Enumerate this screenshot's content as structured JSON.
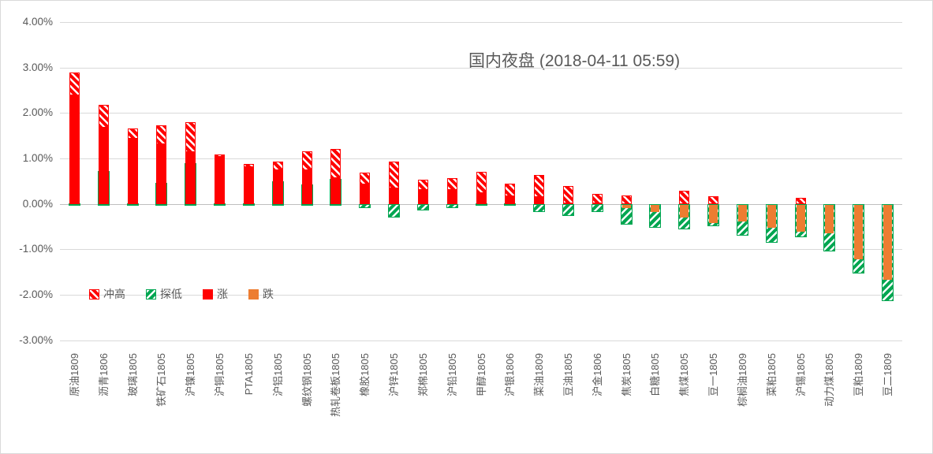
{
  "chart": {
    "title": "国内夜盘 (2018-04-11 05:59)",
    "legend": [
      {
        "label": "冲高",
        "style": "red-hatch"
      },
      {
        "label": "探低",
        "style": "green-hatch"
      },
      {
        "label": "涨",
        "style": "red-solid"
      },
      {
        "label": "跌",
        "style": "orange-solid"
      }
    ],
    "colors": {
      "rise_red": "#ff0000",
      "fall_orange": "#ed7d31",
      "low_green": "#00a651",
      "gridline": "#d9d9d9",
      "axis_text": "#595959"
    }
  },
  "chart_data": {
    "type": "bar",
    "subtype": "overlapped high-low-close change bars",
    "title": "国内夜盘 (2018-04-11 05:59)",
    "xlabel": "",
    "ylabel": "",
    "ylim": [
      -3,
      4
    ],
    "grid": true,
    "legend_position": "inside lower-left",
    "y_ticks": [
      "4.00%",
      "3.00%",
      "2.00%",
      "1.00%",
      "0.00%",
      "-1.00%",
      "-2.00%",
      "-3.00%"
    ],
    "y_tick_values": [
      4,
      3,
      2,
      1,
      0,
      -1,
      -2,
      -3
    ],
    "categories": [
      "原油1809",
      "沥青1806",
      "玻璃1805",
      "铁矿石1805",
      "沪镍1805",
      "沪铜1805",
      "PTA1805",
      "沪铝1805",
      "螺纹钢1805",
      "热轧卷板1805",
      "橡胶1805",
      "沪锌1805",
      "郑棉1805",
      "沪铅1805",
      "甲醇1805",
      "沪银1806",
      "菜油1809",
      "豆油1805",
      "沪金1806",
      "焦炭1805",
      "白糖1805",
      "焦煤1805",
      "豆一1805",
      "棕榈油1809",
      "菜粕1805",
      "沪锡1805",
      "动力煤1805",
      "豆粕1809",
      "豆二1809"
    ],
    "series": [
      {
        "name": "冲高",
        "role": "session high %",
        "values": [
          2.89,
          2.17,
          1.65,
          1.72,
          1.8,
          1.08,
          0.87,
          0.93,
          1.16,
          1.2,
          0.68,
          0.93,
          0.53,
          0.57,
          0.7,
          0.44,
          0.64,
          0.4,
          0.22,
          0.18,
          0.0,
          0.28,
          0.16,
          0.0,
          0.0,
          0.14,
          0.0,
          0.0,
          0.0
        ]
      },
      {
        "name": "探低",
        "role": "session low %",
        "values": [
          -0.03,
          0.72,
          -0.04,
          0.46,
          0.9,
          -0.02,
          -0.02,
          0.5,
          0.43,
          0.55,
          -0.09,
          -0.3,
          -0.15,
          -0.1,
          -0.03,
          -0.04,
          -0.18,
          -0.26,
          -0.18,
          -0.46,
          -0.53,
          -0.56,
          -0.5,
          -0.7,
          -0.86,
          -0.73,
          -1.05,
          -1.53,
          -2.14
        ]
      },
      {
        "name": "涨/跌",
        "role": "close change % (涨 if >0, 跌 if <0)",
        "values": [
          2.41,
          1.7,
          1.45,
          1.33,
          1.16,
          1.05,
          0.83,
          0.75,
          0.75,
          0.58,
          0.44,
          0.36,
          0.32,
          0.32,
          0.26,
          0.19,
          0.16,
          0.03,
          0.02,
          -0.08,
          -0.17,
          -0.28,
          -0.4,
          -0.37,
          -0.51,
          -0.6,
          -0.63,
          -1.2,
          -1.65
        ]
      }
    ]
  }
}
